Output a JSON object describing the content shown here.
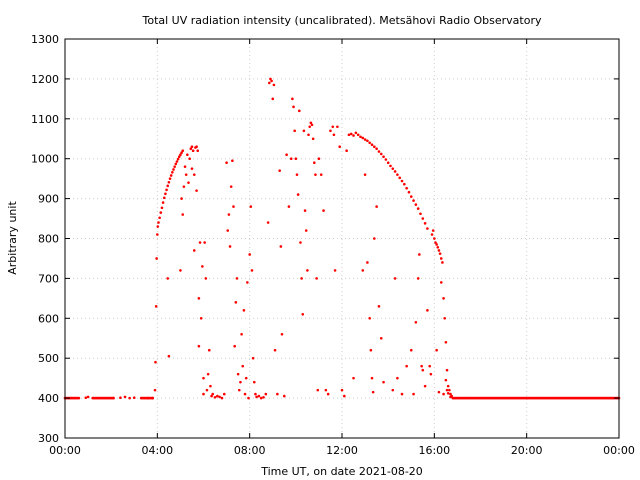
{
  "chart_data": {
    "type": "scatter",
    "title": "Total UV radiation intensity (uncalibrated). Metsähovi Radio Observatory",
    "xlabel": "Time UT, on date 2021-08-20",
    "ylabel": "Arbitrary unit",
    "x_unit": "hours UT",
    "xlim": [
      0,
      24
    ],
    "ylim": [
      300,
      1300
    ],
    "x_ticks": [
      0,
      4,
      8,
      12,
      16,
      20,
      24
    ],
    "x_tick_labels": [
      "00:00",
      "04:00",
      "08:00",
      "12:00",
      "16:00",
      "20:00",
      "00:00"
    ],
    "y_ticks": [
      300,
      400,
      500,
      600,
      700,
      800,
      900,
      1000,
      1100,
      1200,
      1300
    ],
    "y_tick_labels": [
      "300",
      "400",
      "500",
      "600",
      "700",
      "800",
      "900",
      "1000",
      "1100",
      "1200",
      "1300"
    ],
    "grid": true,
    "color": "#ff0000",
    "series": [
      {
        "points": [
          [
            0.0,
            400
          ],
          [
            0.3,
            400
          ],
          [
            0.6,
            400
          ],
          [
            0.9,
            401
          ],
          [
            1.0,
            403
          ],
          [
            1.2,
            400
          ],
          [
            1.5,
            400
          ],
          [
            1.8,
            400
          ],
          [
            2.1,
            400
          ],
          [
            2.4,
            401
          ],
          [
            2.6,
            403
          ],
          [
            2.8,
            400
          ],
          [
            3.0,
            401
          ],
          [
            3.3,
            400
          ],
          [
            3.6,
            400
          ],
          [
            3.8,
            400
          ],
          [
            3.9,
            420
          ],
          [
            3.92,
            490
          ],
          [
            3.95,
            630
          ],
          [
            3.97,
            750
          ],
          [
            4.0,
            810
          ],
          [
            4.02,
            830
          ],
          [
            4.05,
            840
          ],
          [
            4.1,
            852
          ],
          [
            4.15,
            865
          ],
          [
            4.2,
            877
          ],
          [
            4.25,
            890
          ],
          [
            4.3,
            902
          ],
          [
            4.35,
            912
          ],
          [
            4.4,
            922
          ],
          [
            4.45,
            932
          ],
          [
            4.5,
            941
          ],
          [
            4.55,
            950
          ],
          [
            4.6,
            958
          ],
          [
            4.65,
            966
          ],
          [
            4.7,
            973
          ],
          [
            4.75,
            980
          ],
          [
            4.8,
            987
          ],
          [
            4.85,
            993
          ],
          [
            4.9,
            999
          ],
          [
            4.95,
            1005
          ],
          [
            5.0,
            1010
          ],
          [
            5.05,
            1015
          ],
          [
            5.1,
            1020
          ],
          [
            4.45,
            700
          ],
          [
            4.5,
            505
          ],
          [
            5.0,
            720
          ],
          [
            5.05,
            900
          ],
          [
            5.1,
            860
          ],
          [
            5.15,
            930
          ],
          [
            5.2,
            980
          ],
          [
            5.25,
            960
          ],
          [
            5.3,
            1010
          ],
          [
            5.35,
            940
          ],
          [
            5.4,
            1000
          ],
          [
            5.45,
            1025
          ],
          [
            5.5,
            1030
          ],
          [
            5.5,
            975
          ],
          [
            5.55,
            1020
          ],
          [
            5.6,
            770
          ],
          [
            5.6,
            960
          ],
          [
            5.65,
            1028
          ],
          [
            5.7,
            1030
          ],
          [
            5.7,
            920
          ],
          [
            5.75,
            1020
          ],
          [
            5.8,
            650
          ],
          [
            5.8,
            530
          ],
          [
            5.85,
            790
          ],
          [
            5.9,
            600
          ],
          [
            5.95,
            730
          ],
          [
            6.0,
            450
          ],
          [
            6.0,
            410
          ],
          [
            6.05,
            790
          ],
          [
            6.1,
            700
          ],
          [
            6.15,
            420
          ],
          [
            6.2,
            460
          ],
          [
            6.25,
            520
          ],
          [
            6.3,
            430
          ],
          [
            6.35,
            405
          ],
          [
            6.4,
            410
          ],
          [
            6.5,
            402
          ],
          [
            6.6,
            405
          ],
          [
            6.7,
            403
          ],
          [
            6.8,
            400
          ],
          [
            6.9,
            410
          ],
          [
            7.0,
            990
          ],
          [
            7.05,
            820
          ],
          [
            7.1,
            860
          ],
          [
            7.15,
            780
          ],
          [
            7.2,
            930
          ],
          [
            7.25,
            995
          ],
          [
            7.3,
            880
          ],
          [
            7.35,
            530
          ],
          [
            7.4,
            640
          ],
          [
            7.45,
            700
          ],
          [
            7.5,
            460
          ],
          [
            7.55,
            420
          ],
          [
            7.6,
            440
          ],
          [
            7.65,
            560
          ],
          [
            7.7,
            480
          ],
          [
            7.75,
            620
          ],
          [
            7.8,
            410
          ],
          [
            7.85,
            450
          ],
          [
            7.9,
            690
          ],
          [
            7.95,
            400
          ],
          [
            8.0,
            760
          ],
          [
            8.05,
            880
          ],
          [
            8.1,
            720
          ],
          [
            8.15,
            500
          ],
          [
            8.2,
            440
          ],
          [
            8.25,
            410
          ],
          [
            8.3,
            403
          ],
          [
            8.4,
            405
          ],
          [
            8.5,
            400
          ],
          [
            8.6,
            402
          ],
          [
            8.7,
            410
          ],
          [
            8.8,
            840
          ],
          [
            8.85,
            1190
          ],
          [
            8.9,
            1200
          ],
          [
            8.95,
            1195
          ],
          [
            9.0,
            1150
          ],
          [
            9.05,
            1185
          ],
          [
            9.1,
            520
          ],
          [
            9.2,
            410
          ],
          [
            9.3,
            970
          ],
          [
            9.35,
            780
          ],
          [
            9.4,
            560
          ],
          [
            9.5,
            405
          ],
          [
            9.6,
            1010
          ],
          [
            9.7,
            880
          ],
          [
            9.8,
            1000
          ],
          [
            9.85,
            1150
          ],
          [
            9.9,
            1130
          ],
          [
            9.95,
            1070
          ],
          [
            10.0,
            1000
          ],
          [
            10.05,
            960
          ],
          [
            10.1,
            910
          ],
          [
            10.15,
            1120
          ],
          [
            10.2,
            790
          ],
          [
            10.25,
            700
          ],
          [
            10.3,
            610
          ],
          [
            10.35,
            1070
          ],
          [
            10.4,
            870
          ],
          [
            10.45,
            820
          ],
          [
            10.5,
            720
          ],
          [
            10.55,
            1060
          ],
          [
            10.6,
            1080
          ],
          [
            10.65,
            1090
          ],
          [
            10.7,
            1085
          ],
          [
            10.75,
            1050
          ],
          [
            10.8,
            990
          ],
          [
            10.85,
            960
          ],
          [
            10.9,
            700
          ],
          [
            10.95,
            420
          ],
          [
            11.0,
            1000
          ],
          [
            11.1,
            960
          ],
          [
            11.2,
            870
          ],
          [
            11.3,
            420
          ],
          [
            11.4,
            410
          ],
          [
            11.5,
            1070
          ],
          [
            11.6,
            1080
          ],
          [
            11.65,
            1060
          ],
          [
            11.7,
            720
          ],
          [
            11.8,
            1080
          ],
          [
            11.9,
            1030
          ],
          [
            12.0,
            420
          ],
          [
            12.1,
            405
          ],
          [
            12.2,
            1020
          ],
          [
            12.3,
            1060
          ],
          [
            12.4,
            1062
          ],
          [
            12.5,
            1058
          ],
          [
            12.6,
            1065
          ],
          [
            12.7,
            1060
          ],
          [
            12.8,
            1055
          ],
          [
            12.9,
            1052
          ],
          [
            13.0,
            1048
          ],
          [
            13.1,
            1045
          ],
          [
            13.2,
            1040
          ],
          [
            13.3,
            1035
          ],
          [
            13.4,
            1030
          ],
          [
            13.5,
            1025
          ],
          [
            13.6,
            1018
          ],
          [
            13.7,
            1012
          ],
          [
            13.8,
            1005
          ],
          [
            13.9,
            998
          ],
          [
            14.0,
            990
          ],
          [
            14.1,
            982
          ],
          [
            14.2,
            975
          ],
          [
            14.3,
            968
          ],
          [
            14.4,
            960
          ],
          [
            14.5,
            952
          ],
          [
            14.6,
            944
          ],
          [
            14.7,
            936
          ],
          [
            14.8,
            926
          ],
          [
            14.9,
            916
          ],
          [
            15.0,
            905
          ],
          [
            15.1,
            895
          ],
          [
            15.2,
            885
          ],
          [
            15.3,
            875
          ],
          [
            15.4,
            862
          ],
          [
            15.5,
            850
          ],
          [
            15.6,
            838
          ],
          [
            15.7,
            825
          ],
          [
            12.5,
            450
          ],
          [
            12.9,
            720
          ],
          [
            13.0,
            960
          ],
          [
            13.1,
            740
          ],
          [
            13.2,
            600
          ],
          [
            13.25,
            520
          ],
          [
            13.3,
            450
          ],
          [
            13.35,
            415
          ],
          [
            13.4,
            800
          ],
          [
            13.5,
            880
          ],
          [
            13.6,
            630
          ],
          [
            13.7,
            550
          ],
          [
            13.8,
            440
          ],
          [
            14.2,
            420
          ],
          [
            14.3,
            700
          ],
          [
            14.4,
            450
          ],
          [
            14.6,
            410
          ],
          [
            14.8,
            480
          ],
          [
            15.0,
            520
          ],
          [
            15.1,
            410
          ],
          [
            15.2,
            590
          ],
          [
            15.3,
            700
          ],
          [
            15.35,
            760
          ],
          [
            15.45,
            480
          ],
          [
            15.5,
            470
          ],
          [
            15.6,
            430
          ],
          [
            15.7,
            620
          ],
          [
            15.8,
            480
          ],
          [
            15.85,
            460
          ],
          [
            15.9,
            810
          ],
          [
            15.95,
            820
          ],
          [
            16.0,
            800
          ],
          [
            16.05,
            790
          ],
          [
            16.1,
            785
          ],
          [
            16.15,
            778
          ],
          [
            16.2,
            770
          ],
          [
            16.25,
            762
          ],
          [
            16.3,
            750
          ],
          [
            16.35,
            740
          ],
          [
            16.4,
            650
          ],
          [
            16.45,
            600
          ],
          [
            16.5,
            540
          ],
          [
            16.55,
            470
          ],
          [
            16.6,
            430
          ],
          [
            16.65,
            420
          ],
          [
            16.7,
            410
          ],
          [
            16.75,
            405
          ],
          [
            16.1,
            520
          ],
          [
            16.2,
            415
          ],
          [
            16.3,
            690
          ],
          [
            16.4,
            410
          ],
          [
            16.5,
            445
          ],
          [
            16.55,
            420
          ],
          [
            16.6,
            412
          ],
          [
            16.7,
            403
          ],
          [
            16.8,
            400
          ],
          [
            16.9,
            400
          ],
          [
            17.0,
            400
          ],
          [
            17.2,
            400
          ],
          [
            17.5,
            400
          ],
          [
            18.0,
            400
          ],
          [
            18.5,
            400
          ],
          [
            19.0,
            400
          ],
          [
            19.5,
            400
          ],
          [
            20.0,
            400
          ],
          [
            20.5,
            400
          ],
          [
            21.0,
            400
          ],
          [
            21.5,
            400
          ],
          [
            22.0,
            400
          ],
          [
            22.5,
            400
          ],
          [
            23.0,
            400
          ],
          [
            23.5,
            400
          ],
          [
            24.0,
            400
          ]
        ]
      }
    ]
  }
}
